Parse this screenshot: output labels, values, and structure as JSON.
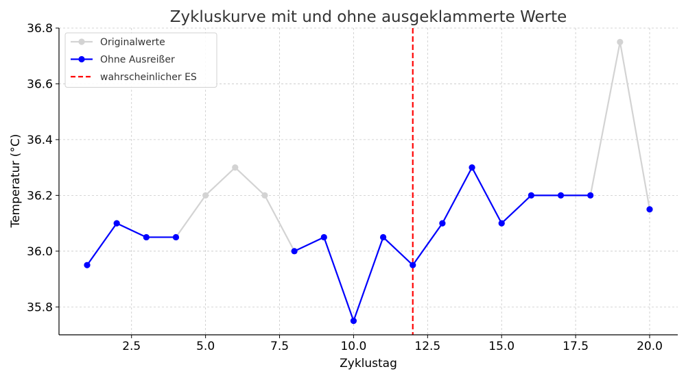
{
  "chart_data": {
    "type": "line",
    "title": "Zykluskurve mit und ohne ausgeklammerte Werte",
    "xlabel": "Zyklustag",
    "ylabel": "Temperatur (°C)",
    "xlim": [
      0.05,
      20.95
    ],
    "ylim": [
      35.7,
      36.8
    ],
    "xticks": [
      2.5,
      5.0,
      7.5,
      10.0,
      12.5,
      15.0,
      17.5,
      20.0
    ],
    "xtick_labels": [
      "2.5",
      "5.0",
      "7.5",
      "10.0",
      "12.5",
      "15.0",
      "17.5",
      "20.0"
    ],
    "yticks": [
      35.8,
      36.0,
      36.2,
      36.4,
      36.6,
      36.8
    ],
    "ytick_labels": [
      "35.8",
      "36.0",
      "36.2",
      "36.4",
      "36.6",
      "36.8"
    ],
    "grid": true,
    "legend_position": "top-left",
    "series": [
      {
        "name": "Originalwerte",
        "color": "#d3d3d3",
        "x": [
          1,
          2,
          3,
          4,
          5,
          6,
          7,
          8,
          9,
          10,
          11,
          12,
          13,
          14,
          15,
          16,
          17,
          18,
          19,
          20
        ],
        "y": [
          35.95,
          36.1,
          36.05,
          36.05,
          36.2,
          36.3,
          36.2,
          36.0,
          36.05,
          35.75,
          36.05,
          35.95,
          36.1,
          36.3,
          36.1,
          36.2,
          36.2,
          36.2,
          36.75,
          36.15
        ]
      },
      {
        "name": "Ohne Ausreißer",
        "color": "#0000ff",
        "x": [
          1,
          2,
          3,
          4,
          5,
          6,
          7,
          8,
          9,
          10,
          11,
          12,
          13,
          14,
          15,
          16,
          17,
          18,
          19,
          20
        ],
        "y": [
          35.95,
          36.1,
          36.05,
          36.05,
          null,
          null,
          null,
          36.0,
          36.05,
          35.75,
          36.05,
          35.95,
          36.1,
          36.3,
          36.1,
          36.2,
          36.2,
          36.2,
          null,
          36.15
        ]
      }
    ],
    "vlines": [
      {
        "name": "wahrscheinlicher ES",
        "x": 12,
        "color": "#ff0000",
        "style": "dashed"
      }
    ]
  }
}
